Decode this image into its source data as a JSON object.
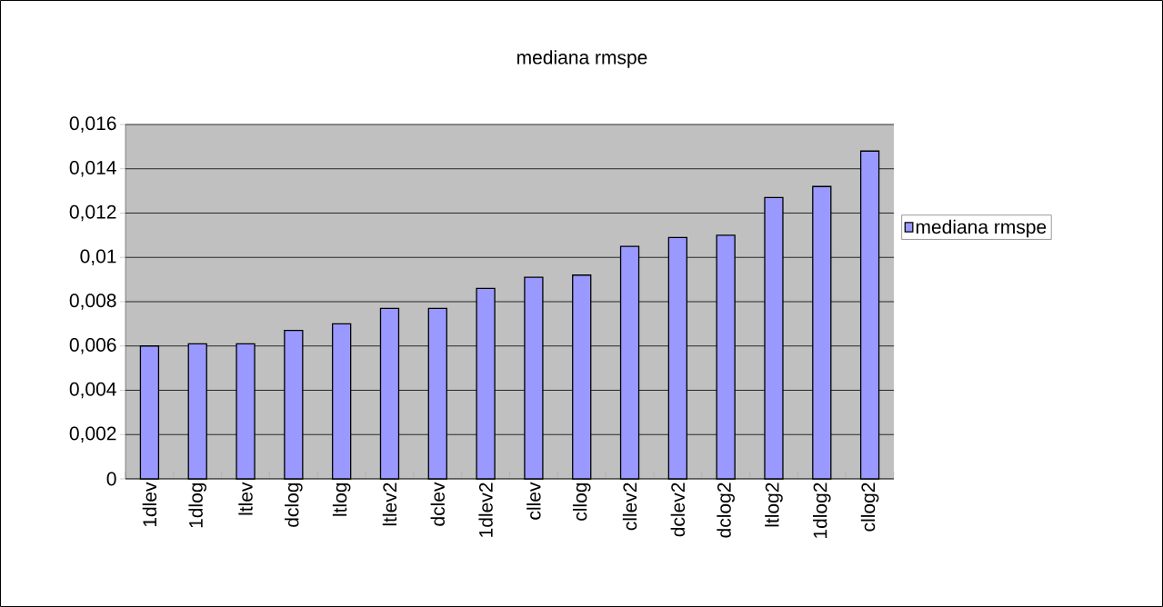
{
  "chart_data": {
    "type": "bar",
    "title": "mediana rmspe",
    "categories": [
      "1dlev",
      "1dlog",
      "ltlev",
      "dclog",
      "ltlog",
      "ltlev2",
      "dclev",
      "1dlev2",
      "cllev",
      "cllog",
      "cllev2",
      "dclev2",
      "dclog2",
      "ltlog2",
      "1dlog2",
      "cllog2"
    ],
    "series": [
      {
        "name": "mediana rmspe",
        "color": "#9999ff",
        "values": [
          0.006,
          0.0061,
          0.0061,
          0.0067,
          0.007,
          0.0077,
          0.0077,
          0.0086,
          0.0091,
          0.0092,
          0.0105,
          0.0109,
          0.011,
          0.0127,
          0.0132,
          0.0148
        ]
      }
    ],
    "ylim": [
      0,
      0.016
    ],
    "yticks": [
      0,
      {
        "value": 0.002,
        "label": "0,002"
      },
      {
        "value": 0.004,
        "label": "0,004"
      },
      {
        "value": 0.006,
        "label": "0,006"
      },
      {
        "value": 0.008,
        "label": "0,008"
      },
      {
        "value": 0.01,
        "label": "0,01"
      },
      {
        "value": 0.012,
        "label": "0,012"
      },
      {
        "value": 0.014,
        "label": "0,014"
      },
      {
        "value": 0.016,
        "label": "0,016"
      }
    ],
    "grid": "y",
    "legend": "right"
  }
}
